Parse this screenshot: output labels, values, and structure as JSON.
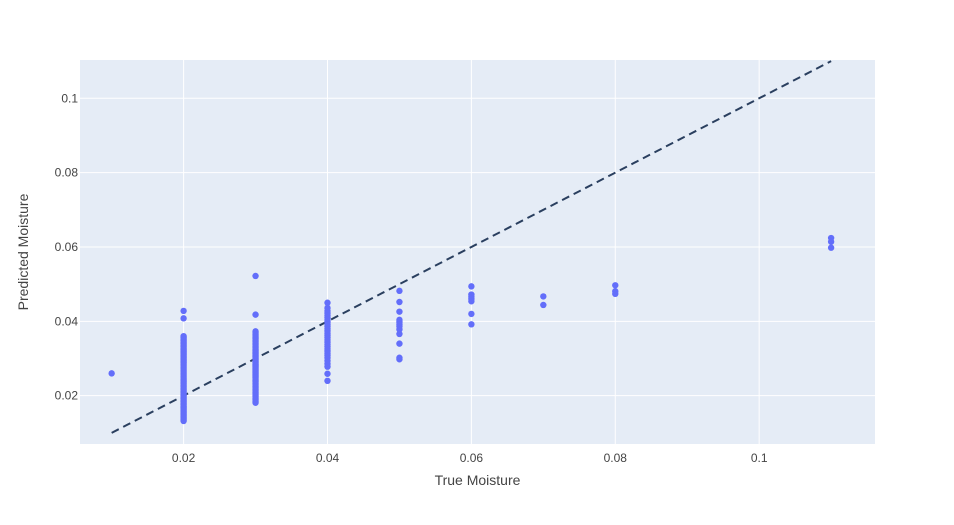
{
  "chart_data": {
    "type": "scatter",
    "title": "",
    "xlabel": "True Moisture",
    "ylabel": "Predicted Moisture",
    "xlim": [
      0.0056,
      0.1161
    ],
    "ylim": [
      0.007,
      0.1103
    ],
    "x_ticks": [
      0.02,
      0.04,
      0.06,
      0.08,
      0.1
    ],
    "x_tick_labels": [
      "0.02",
      "0.04",
      "0.06",
      "0.08",
      "0.1"
    ],
    "y_ticks": [
      0.02,
      0.04,
      0.06,
      0.08,
      0.1
    ],
    "y_tick_labels": [
      "0.02",
      "0.04",
      "0.06",
      "0.08",
      "0.1"
    ],
    "grid": true,
    "legend": "none",
    "colors": {
      "plot_background": "#E5ECF6",
      "grid": "#FFFFFF",
      "points": "#636EFA",
      "reference_line": "#2A3F5F"
    },
    "reference_line": {
      "style": "dashed",
      "x": [
        0.01,
        0.11
      ],
      "y": [
        0.01,
        0.11
      ]
    },
    "series": [
      {
        "points": [
          [
            0.01,
            0.026
          ],
          [
            0.02,
            0.0428
          ],
          [
            0.02,
            0.0408
          ],
          [
            0.02,
            0.036
          ],
          [
            0.02,
            0.0356
          ],
          [
            0.02,
            0.0352
          ],
          [
            0.02,
            0.0348
          ],
          [
            0.02,
            0.0344
          ],
          [
            0.02,
            0.034
          ],
          [
            0.02,
            0.0336
          ],
          [
            0.02,
            0.0332
          ],
          [
            0.02,
            0.0328
          ],
          [
            0.02,
            0.0324
          ],
          [
            0.02,
            0.032
          ],
          [
            0.02,
            0.0316
          ],
          [
            0.02,
            0.0312
          ],
          [
            0.02,
            0.0308
          ],
          [
            0.02,
            0.0304
          ],
          [
            0.02,
            0.03
          ],
          [
            0.02,
            0.0296
          ],
          [
            0.02,
            0.0292
          ],
          [
            0.02,
            0.0288
          ],
          [
            0.02,
            0.0284
          ],
          [
            0.02,
            0.028
          ],
          [
            0.02,
            0.0276
          ],
          [
            0.02,
            0.0272
          ],
          [
            0.02,
            0.0268
          ],
          [
            0.02,
            0.0264
          ],
          [
            0.02,
            0.026
          ],
          [
            0.02,
            0.0256
          ],
          [
            0.02,
            0.0252
          ],
          [
            0.02,
            0.0248
          ],
          [
            0.02,
            0.0244
          ],
          [
            0.02,
            0.024
          ],
          [
            0.02,
            0.0236
          ],
          [
            0.02,
            0.0232
          ],
          [
            0.02,
            0.0228
          ],
          [
            0.02,
            0.0224
          ],
          [
            0.02,
            0.022
          ],
          [
            0.02,
            0.0216
          ],
          [
            0.02,
            0.0212
          ],
          [
            0.02,
            0.0208
          ],
          [
            0.02,
            0.0204
          ],
          [
            0.02,
            0.02
          ],
          [
            0.02,
            0.0196
          ],
          [
            0.02,
            0.0192
          ],
          [
            0.02,
            0.0188
          ],
          [
            0.02,
            0.0184
          ],
          [
            0.02,
            0.018
          ],
          [
            0.02,
            0.0176
          ],
          [
            0.02,
            0.0172
          ],
          [
            0.02,
            0.0168
          ],
          [
            0.02,
            0.0164
          ],
          [
            0.02,
            0.016
          ],
          [
            0.02,
            0.0156
          ],
          [
            0.02,
            0.0152
          ],
          [
            0.02,
            0.0148
          ],
          [
            0.02,
            0.0144
          ],
          [
            0.02,
            0.014
          ],
          [
            0.02,
            0.0136
          ],
          [
            0.02,
            0.0132
          ],
          [
            0.03,
            0.0522
          ],
          [
            0.03,
            0.0418
          ],
          [
            0.03,
            0.0373
          ],
          [
            0.03,
            0.0369
          ],
          [
            0.03,
            0.0365
          ],
          [
            0.03,
            0.0361
          ],
          [
            0.03,
            0.0357
          ],
          [
            0.03,
            0.0353
          ],
          [
            0.03,
            0.0349
          ],
          [
            0.03,
            0.0345
          ],
          [
            0.03,
            0.0341
          ],
          [
            0.03,
            0.0337
          ],
          [
            0.03,
            0.0333
          ],
          [
            0.03,
            0.0329
          ],
          [
            0.03,
            0.0325
          ],
          [
            0.03,
            0.0321
          ],
          [
            0.03,
            0.0317
          ],
          [
            0.03,
            0.0313
          ],
          [
            0.03,
            0.0309
          ],
          [
            0.03,
            0.0305
          ],
          [
            0.03,
            0.0301
          ],
          [
            0.03,
            0.0297
          ],
          [
            0.03,
            0.0293
          ],
          [
            0.03,
            0.0289
          ],
          [
            0.03,
            0.0285
          ],
          [
            0.03,
            0.0281
          ],
          [
            0.03,
            0.0277
          ],
          [
            0.03,
            0.0273
          ],
          [
            0.03,
            0.0269
          ],
          [
            0.03,
            0.0265
          ],
          [
            0.03,
            0.0261
          ],
          [
            0.03,
            0.0257
          ],
          [
            0.03,
            0.0253
          ],
          [
            0.03,
            0.0249
          ],
          [
            0.03,
            0.0245
          ],
          [
            0.03,
            0.0241
          ],
          [
            0.03,
            0.0237
          ],
          [
            0.03,
            0.0233
          ],
          [
            0.03,
            0.0229
          ],
          [
            0.03,
            0.0225
          ],
          [
            0.03,
            0.0221
          ],
          [
            0.03,
            0.0217
          ],
          [
            0.03,
            0.0213
          ],
          [
            0.03,
            0.0209
          ],
          [
            0.03,
            0.0205
          ],
          [
            0.03,
            0.0201
          ],
          [
            0.03,
            0.0197
          ],
          [
            0.03,
            0.0193
          ],
          [
            0.03,
            0.0189
          ],
          [
            0.03,
            0.0185
          ],
          [
            0.03,
            0.0181
          ],
          [
            0.04,
            0.045
          ],
          [
            0.04,
            0.0436
          ],
          [
            0.04,
            0.0428
          ],
          [
            0.04,
            0.0422
          ],
          [
            0.04,
            0.0416
          ],
          [
            0.04,
            0.041
          ],
          [
            0.04,
            0.0404
          ],
          [
            0.04,
            0.0398
          ],
          [
            0.04,
            0.0392
          ],
          [
            0.04,
            0.0386
          ],
          [
            0.04,
            0.038
          ],
          [
            0.04,
            0.0374
          ],
          [
            0.04,
            0.0368
          ],
          [
            0.04,
            0.0362
          ],
          [
            0.04,
            0.0356
          ],
          [
            0.04,
            0.035
          ],
          [
            0.04,
            0.0344
          ],
          [
            0.04,
            0.0338
          ],
          [
            0.04,
            0.0332
          ],
          [
            0.04,
            0.0326
          ],
          [
            0.04,
            0.032
          ],
          [
            0.04,
            0.0314
          ],
          [
            0.04,
            0.0308
          ],
          [
            0.04,
            0.0302
          ],
          [
            0.04,
            0.0294
          ],
          [
            0.04,
            0.0286
          ],
          [
            0.04,
            0.0278
          ],
          [
            0.04,
            0.0259
          ],
          [
            0.04,
            0.024
          ],
          [
            0.05,
            0.0482
          ],
          [
            0.05,
            0.0452
          ],
          [
            0.05,
            0.0426
          ],
          [
            0.05,
            0.0404
          ],
          [
            0.05,
            0.0398
          ],
          [
            0.05,
            0.0392
          ],
          [
            0.05,
            0.0386
          ],
          [
            0.05,
            0.0378
          ],
          [
            0.05,
            0.0366
          ],
          [
            0.05,
            0.034
          ],
          [
            0.05,
            0.0302
          ],
          [
            0.05,
            0.0298
          ],
          [
            0.06,
            0.0494
          ],
          [
            0.06,
            0.0472
          ],
          [
            0.06,
            0.0466
          ],
          [
            0.06,
            0.046
          ],
          [
            0.06,
            0.0454
          ],
          [
            0.06,
            0.042
          ],
          [
            0.06,
            0.0392
          ],
          [
            0.07,
            0.0467
          ],
          [
            0.07,
            0.0444
          ],
          [
            0.08,
            0.0497
          ],
          [
            0.08,
            0.0481
          ],
          [
            0.08,
            0.0474
          ],
          [
            0.11,
            0.0624
          ],
          [
            0.11,
            0.0614
          ],
          [
            0.11,
            0.0598
          ]
        ]
      }
    ]
  }
}
